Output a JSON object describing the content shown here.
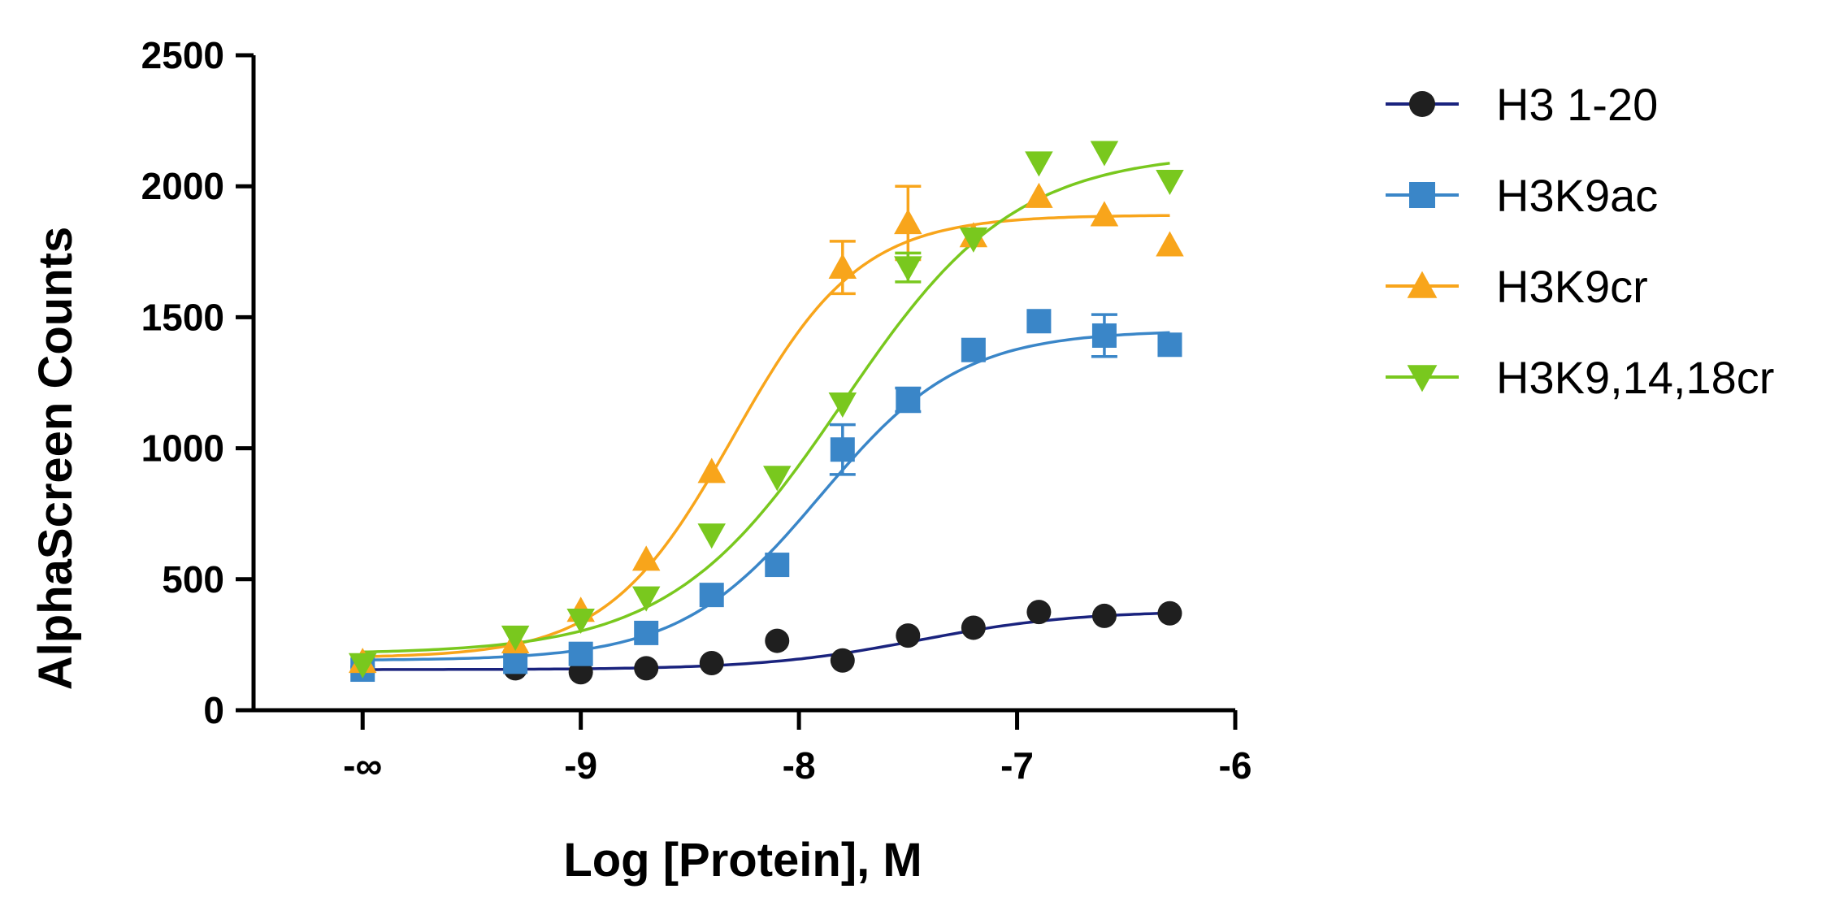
{
  "chart_data": {
    "type": "line",
    "xlabel": "Log [Protein], M",
    "ylabel": "AlphaScreen Counts",
    "xlim": [
      -10.5,
      -6
    ],
    "ylim": [
      0,
      2500
    ],
    "x_ticks": [
      {
        "value": -10,
        "label": "-∞"
      },
      {
        "value": -9,
        "label": "-9"
      },
      {
        "value": -8,
        "label": "-8"
      },
      {
        "value": -7,
        "label": "-7"
      },
      {
        "value": -6,
        "label": "-6"
      }
    ],
    "y_ticks": [
      {
        "value": 0,
        "label": "0"
      },
      {
        "value": 500,
        "label": "500"
      },
      {
        "value": 1000,
        "label": "1000"
      },
      {
        "value": 1500,
        "label": "1500"
      },
      {
        "value": 2000,
        "label": "2000"
      },
      {
        "value": 2500,
        "label": "2500"
      }
    ],
    "grid": false,
    "legend_position": "right",
    "series": [
      {
        "name": "H3 1-20",
        "color": "#1f1f1f",
        "line_color": "#1a237e",
        "marker": "circle",
        "x": [
          -10,
          -9.3,
          -9,
          -8.7,
          -8.4,
          -8.1,
          -7.8,
          -7.5,
          -7.2,
          -6.9,
          -6.6,
          -6.3
        ],
        "y": [
          165,
          160,
          145,
          160,
          180,
          265,
          190,
          285,
          315,
          375,
          360,
          370
        ],
        "errors": [],
        "fit": {
          "bottom": 155,
          "top": 380,
          "logEC50": -7.45,
          "hill": 1.2
        }
      },
      {
        "name": "H3K9ac",
        "color": "#3a86c8",
        "line_color": "#3a86c8",
        "marker": "square",
        "x": [
          -10,
          -9.3,
          -9,
          -8.7,
          -8.4,
          -8.1,
          -7.8,
          -7.5,
          -7.2,
          -6.9,
          -6.6,
          -6.3
        ],
        "y": [
          155,
          185,
          215,
          295,
          440,
          555,
          995,
          1185,
          1375,
          1485,
          1430,
          1395
        ],
        "errors": [
          0,
          0,
          0,
          0,
          0,
          0,
          95,
          45,
          0,
          0,
          80,
          0
        ],
        "fit": {
          "bottom": 190,
          "top": 1450,
          "logEC50": -7.9,
          "hill": 1.35
        }
      },
      {
        "name": "H3K9cr",
        "color": "#f8a51b",
        "line_color": "#f8a51b",
        "marker": "triangle-up",
        "x": [
          -10,
          -9.3,
          -9,
          -8.7,
          -8.4,
          -7.8,
          -7.5,
          -7.2,
          -6.9,
          -6.6,
          -6.3
        ],
        "y": [
          185,
          260,
          380,
          575,
          910,
          1690,
          1860,
          1810,
          1960,
          1890,
          1775
        ],
        "errors": [
          0,
          0,
          0,
          0,
          0,
          100,
          140,
          0,
          0,
          0,
          0
        ],
        "fit": {
          "bottom": 200,
          "top": 1890,
          "logEC50": -8.3,
          "hill": 1.5
        }
      },
      {
        "name": "H3K9,14,18cr",
        "color": "#79c81e",
        "line_color": "#79c81e",
        "marker": "triangle-down",
        "x": [
          -10,
          -9.3,
          -9,
          -8.7,
          -8.4,
          -8.1,
          -7.8,
          -7.5,
          -7.2,
          -6.9,
          -6.6,
          -6.3
        ],
        "y": [
          175,
          280,
          345,
          430,
          670,
          890,
          1170,
          1690,
          1800,
          2090,
          2130,
          2020
        ],
        "errors": [
          0,
          0,
          0,
          0,
          0,
          0,
          0,
          55,
          0,
          0,
          0,
          0
        ],
        "fit": {
          "bottom": 215,
          "top": 2130,
          "logEC50": -7.8,
          "hill": 1.1
        }
      }
    ]
  }
}
